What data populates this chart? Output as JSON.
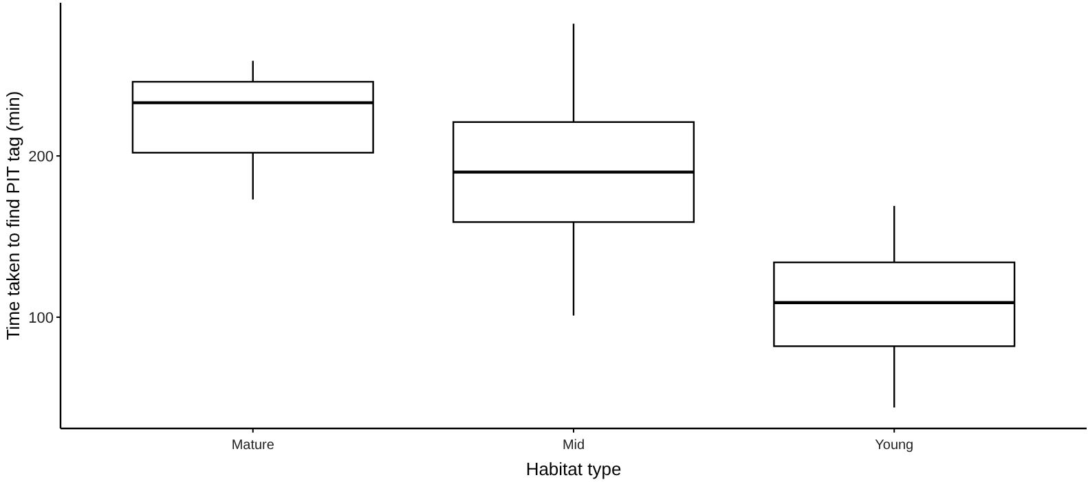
{
  "chart_data": {
    "type": "box",
    "xlabel": "Habitat type",
    "ylabel": "Time taken to find PIT tag (min)",
    "categories": [
      "Mature",
      "Mid",
      "Young"
    ],
    "boxes": [
      {
        "low": 173,
        "q1": 202,
        "median": 233,
        "q3": 246,
        "high": 259
      },
      {
        "low": 101,
        "q1": 159,
        "median": 190,
        "q3": 221,
        "high": 282
      },
      {
        "low": 44,
        "q1": 82,
        "median": 109,
        "q3": 134,
        "high": 169
      }
    ],
    "ylim": [
      31,
      295
    ],
    "yticks": [
      100,
      200
    ],
    "grid": false
  }
}
